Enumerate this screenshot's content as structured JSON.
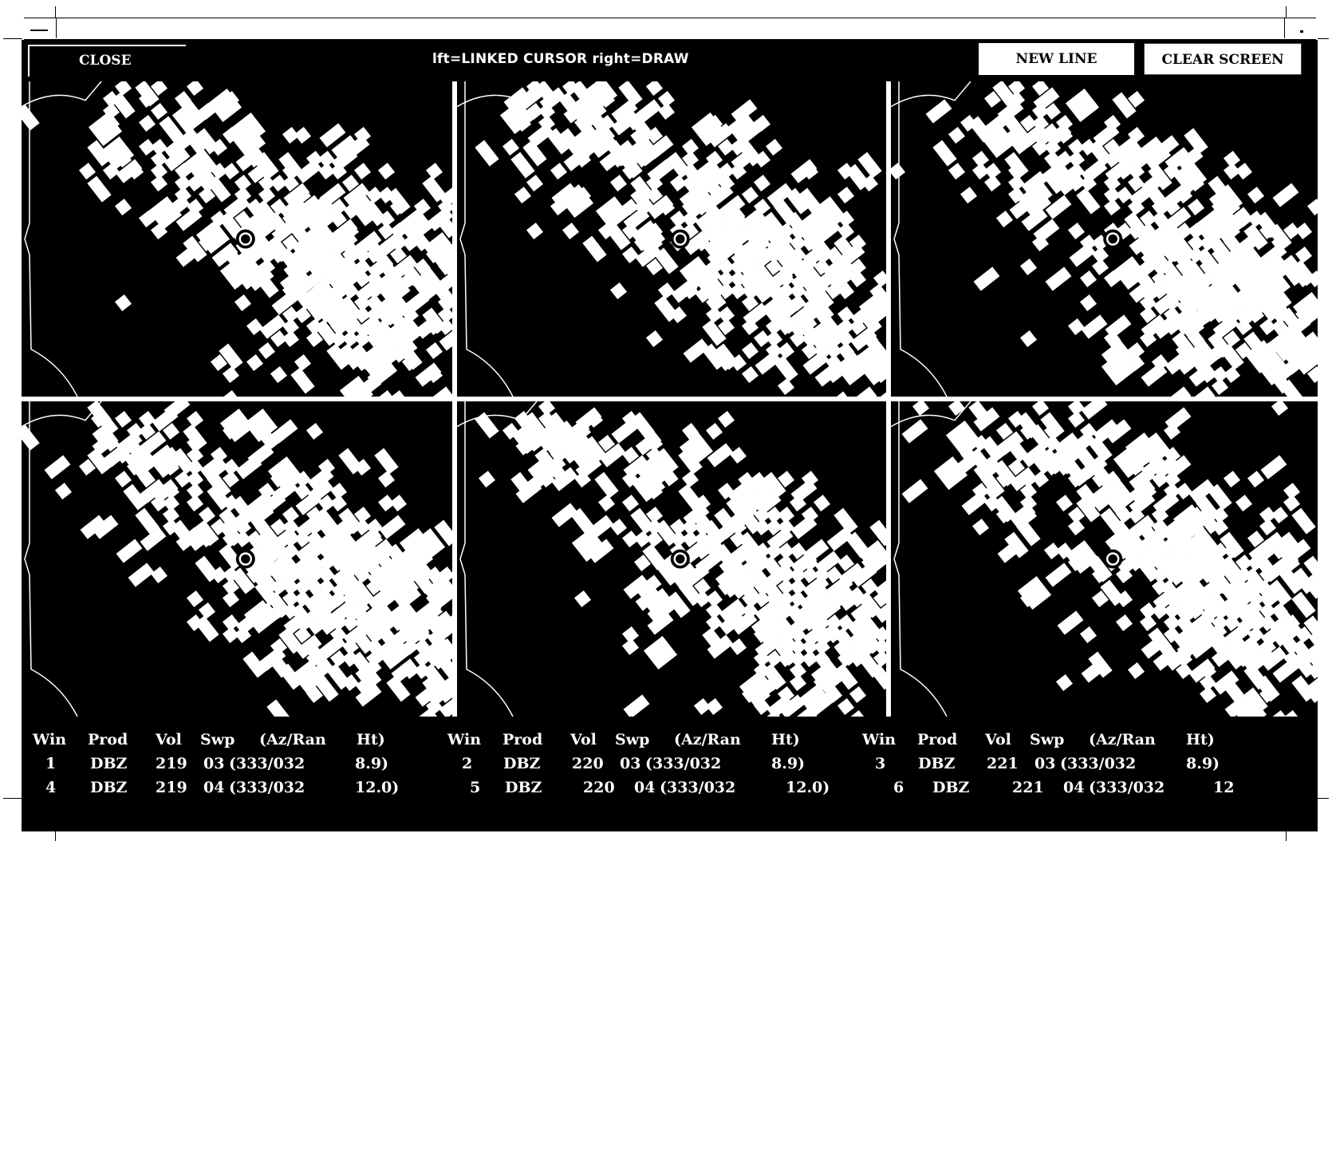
{
  "toolbar": {
    "close_label": "CLOSE",
    "hint": "lft=LINKED CURSOR   right=DRAW",
    "new_line_label": "NEW LINE",
    "clear_screen_label": "CLEAR SCREEN"
  },
  "panels": [
    {
      "win": "1"
    },
    {
      "win": "2"
    },
    {
      "win": "3"
    },
    {
      "win": "4"
    },
    {
      "win": "5"
    },
    {
      "win": "6"
    }
  ],
  "info": {
    "headers": [
      "Win",
      "Prod",
      "Vol",
      "Swp",
      "(Az/Ran",
      "Ht)"
    ],
    "rows": [
      [
        {
          "win": "1",
          "prod": "DBZ",
          "vol": "219",
          "swp": "03",
          "azran": "(333/032",
          "ht": "8.9)"
        },
        {
          "win": "2",
          "prod": "DBZ",
          "vol": "220",
          "swp": "03",
          "azran": "(333/032",
          "ht": "8.9)"
        },
        {
          "win": "3",
          "prod": "DBZ",
          "vol": "221",
          "swp": "03",
          "azran": "(333/032",
          "ht": "8.9)"
        }
      ],
      [
        {
          "win": "4",
          "prod": "DBZ",
          "vol": "219",
          "swp": "04",
          "azran": "(333/032",
          "ht": "12.0)"
        },
        {
          "win": "5",
          "prod": "DBZ",
          "vol": "220",
          "swp": "04",
          "azran": "(333/032",
          "ht": "12.0)"
        },
        {
          "win": "6",
          "prod": "DBZ",
          "vol": "221",
          "swp": "04",
          "azran": "(333/032",
          "ht": "12"
        }
      ]
    ]
  },
  "colors": {
    "background": "#000000",
    "echo": "#ffffff",
    "frame": "#ffffff"
  },
  "icons": {
    "window_menu": "window-menu-icon",
    "resize": "resize-icon",
    "cursor_marker": "cursor-circle-icon"
  }
}
